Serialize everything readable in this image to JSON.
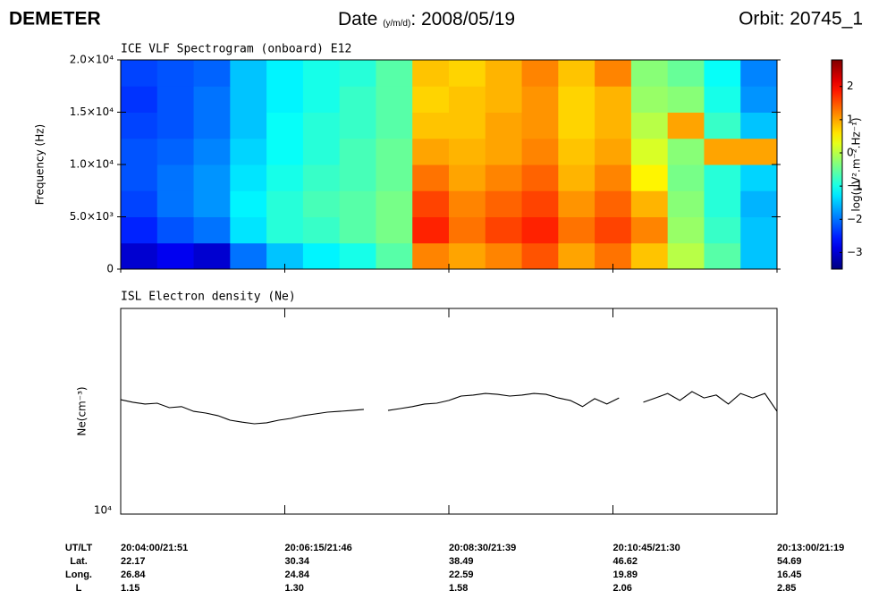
{
  "header": {
    "mission": "DEMETER",
    "date_label": "Date",
    "date_unit": "(y/m/d)",
    "date_value": ": 2008/05/19",
    "orbit": "Orbit: 20745_1"
  },
  "chart_data": [
    {
      "type": "heatmap",
      "title": "ICE VLF Spectrogram (onboard) E12",
      "y_label": "Frequency (Hz)",
      "colorbar_label": "log(μV².m⁻².Hz⁻¹)",
      "colormap": "jet",
      "clim": [
        -3.5,
        2.8
      ],
      "cticks": [
        {
          "value": -3,
          "label": "−3"
        },
        {
          "value": -2,
          "label": "−2"
        },
        {
          "value": -1,
          "label": "−1"
        },
        0,
        1,
        2
      ],
      "xlim": [
        "20:04:00",
        "20:13:00"
      ],
      "xticks": [
        "20:04:00",
        "20:06:15",
        "20:08:30",
        "20:10:45",
        "20:13:00"
      ],
      "ylim": [
        0,
        20000
      ],
      "yticks": [
        0,
        {
          "value": 5000,
          "label": "5.0×10³"
        },
        {
          "value": 10000,
          "label": "1.0×10⁴"
        },
        {
          "value": 15000,
          "label": "1.5×10⁴"
        },
        {
          "value": 20000,
          "label": "2.0×10⁴"
        }
      ],
      "x_bins": [
        "20:04:00",
        "20:04:30",
        "20:05:00",
        "20:05:30",
        "20:06:00",
        "20:06:30",
        "20:07:00",
        "20:07:30",
        "20:08:00",
        "20:08:30",
        "20:09:00",
        "20:09:30",
        "20:10:00",
        "20:10:30",
        "20:11:00",
        "20:11:30",
        "20:12:00",
        "20:12:30",
        "20:13:00"
      ],
      "y_bins": [
        0,
        2500,
        5000,
        7500,
        10000,
        12500,
        15000,
        17500,
        20000
      ],
      "values": [
        [
          -3,
          -2.8,
          -3,
          -2,
          -1.5,
          -1.2,
          -1,
          -0.6,
          1.2,
          1,
          1.2,
          1.5,
          1,
          1.3,
          0.8,
          0,
          -0.6,
          -1.5
        ],
        [
          -2.5,
          -2.2,
          -2,
          -1.3,
          -0.9,
          -0.8,
          -0.6,
          -0.4,
          1.8,
          1.3,
          1.6,
          1.8,
          1.3,
          1.6,
          1.2,
          -0.2,
          -0.8,
          -1.5
        ],
        [
          -2.3,
          -2,
          -1.8,
          -1.2,
          -0.9,
          -0.7,
          -0.6,
          -0.4,
          1.6,
          1.2,
          1.4,
          1.6,
          1.1,
          1.4,
          0.9,
          -0.3,
          -0.9,
          -1.6
        ],
        [
          -2.2,
          -2,
          -1.8,
          -1.3,
          -1,
          -0.8,
          -0.7,
          -0.5,
          1.3,
          1,
          1.2,
          1.4,
          0.9,
          1.2,
          0.5,
          -0.4,
          -0.9,
          -1.4
        ],
        [
          -2.2,
          -2.1,
          -1.9,
          -1.4,
          -1.1,
          -0.9,
          -0.7,
          -0.5,
          1,
          0.9,
          1,
          1.2,
          0.8,
          1,
          0.2,
          -0.3,
          1,
          1
        ],
        [
          -2.3,
          -2.2,
          -2,
          -1.5,
          -1.1,
          -0.9,
          -0.8,
          -0.6,
          0.8,
          0.8,
          1,
          1.1,
          0.7,
          0.9,
          0,
          1,
          -0.8,
          -1.5
        ],
        [
          -2.4,
          -2.2,
          -2,
          -1.5,
          -1.2,
          -1,
          -0.8,
          -0.6,
          0.7,
          0.8,
          0.9,
          1.1,
          0.7,
          0.9,
          -0.2,
          -0.3,
          -1,
          -1.8
        ],
        [
          -2.3,
          -2.2,
          -2.1,
          -1.5,
          -1.2,
          -1,
          -0.9,
          -0.6,
          0.8,
          0.7,
          0.9,
          1.2,
          0.8,
          1.2,
          -0.3,
          -0.5,
          -1.1,
          -1.9
        ]
      ]
    },
    {
      "type": "line",
      "title": "ISL Electron density (Ne)",
      "y_label": "Ne(cm⁻³)",
      "color": "#000000",
      "log_y": true,
      "ylim": [
        10000,
        100000
      ],
      "yticks": [
        {
          "value": 10000,
          "label": "10⁴"
        }
      ],
      "xlim": [
        "20:04:00",
        "20:13:00"
      ],
      "xticks": [
        "20:04:00",
        "20:06:15",
        "20:08:30",
        "20:10:45",
        "20:13:00"
      ],
      "x": [
        "20:04:00",
        "20:04:10",
        "20:04:20",
        "20:04:30",
        "20:04:40",
        "20:04:50",
        "20:05:00",
        "20:05:10",
        "20:05:20",
        "20:05:30",
        "20:05:40",
        "20:05:50",
        "20:06:00",
        "20:06:10",
        "20:06:20",
        "20:06:30",
        "20:06:40",
        "20:06:50",
        "20:07:00",
        "20:07:10",
        "20:07:20",
        "20:07:30",
        "20:07:40",
        "20:07:50",
        "20:08:00",
        "20:08:10",
        "20:08:20",
        "20:08:30",
        "20:08:40",
        "20:08:50",
        "20:09:00",
        "20:09:10",
        "20:09:20",
        "20:09:30",
        "20:09:40",
        "20:09:50",
        "20:10:00",
        "20:10:10",
        "20:10:20",
        "20:10:30",
        "20:10:40",
        "20:10:50",
        "20:11:00",
        "20:11:10",
        "20:11:20",
        "20:11:30",
        "20:11:40",
        "20:11:50",
        "20:12:00",
        "20:12:10",
        "20:12:20",
        "20:12:30",
        "20:12:40",
        "20:12:50",
        "20:13:00"
      ],
      "values": [
        36000,
        35000,
        34300,
        34600,
        32900,
        33300,
        31600,
        31000,
        30100,
        28600,
        28000,
        27500,
        27800,
        28600,
        29200,
        30100,
        30700,
        31300,
        31600,
        31900,
        32300,
        null,
        31900,
        32600,
        33300,
        34300,
        34600,
        35700,
        37500,
        37900,
        38600,
        38200,
        37500,
        37900,
        38600,
        38200,
        36700,
        35700,
        33300,
        36400,
        34300,
        36700,
        null,
        35000,
        36700,
        38600,
        35700,
        39400,
        36700,
        37900,
        34300,
        38600,
        36700,
        38600,
        31600
      ]
    }
  ],
  "orbit_table": {
    "row_labels": [
      "UT/LT",
      "Lat.",
      "Long.",
      "L"
    ],
    "rows": [
      [
        "20:04:00/21:51",
        "20:06:15/21:46",
        "20:08:30/21:39",
        "20:10:45/21:30",
        "20:13:00/21:19"
      ],
      [
        "22.17",
        "30.34",
        "38.49",
        "46.62",
        "54.69"
      ],
      [
        "26.84",
        "24.84",
        "22.59",
        "19.89",
        "16.45"
      ],
      [
        "1.15",
        "1.30",
        "1.58",
        "2.06",
        "2.85"
      ]
    ]
  }
}
